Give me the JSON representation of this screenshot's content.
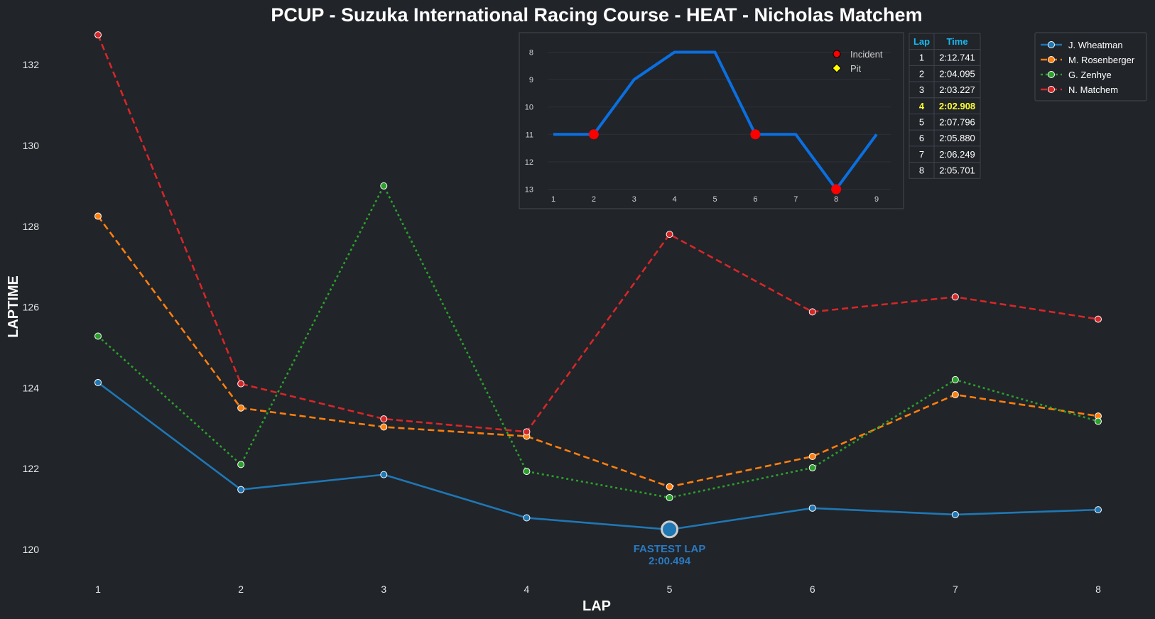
{
  "chart_data": {
    "type": "line",
    "title": "PCUP - Suzuka International Racing Course - HEAT - Nicholas Matchem",
    "xlabel": "LAP",
    "ylabel": "LAPTIME",
    "x": [
      1,
      2,
      3,
      4,
      5,
      6,
      7,
      8
    ],
    "ylim": [
      119.4,
      132.9
    ],
    "yticks": [
      120,
      122,
      124,
      126,
      128,
      130,
      132
    ],
    "grid": false,
    "legend_position": "top-right",
    "series": [
      {
        "name": "J. Wheatman",
        "color": "#1f77b4",
        "dash": "solid",
        "values": [
          124.13,
          121.48,
          121.85,
          120.78,
          120.49,
          121.02,
          120.86,
          120.98
        ]
      },
      {
        "name": "M. Rosenberger",
        "color": "#ff7f0e",
        "dash": "dashed",
        "values": [
          128.25,
          123.5,
          123.03,
          122.8,
          121.55,
          122.3,
          123.83,
          123.3
        ]
      },
      {
        "name": "G. Zenhye",
        "color": "#2ca02c",
        "dash": "dotted",
        "values": [
          125.28,
          122.1,
          129.0,
          121.93,
          121.28,
          122.02,
          124.2,
          123.17
        ]
      },
      {
        "name": "N. Matchem",
        "color": "#d62728",
        "dash": "dashed",
        "values": [
          132.74,
          124.1,
          123.23,
          122.91,
          127.8,
          125.88,
          126.25,
          125.7
        ]
      }
    ],
    "annotation": {
      "label": "FASTEST LAP",
      "value": "2:00.494",
      "lap": 5,
      "laptime": 120.494
    },
    "inset_position_chart": {
      "type": "line",
      "x": [
        1,
        2,
        3,
        4,
        5,
        6,
        7,
        8,
        9
      ],
      "values": [
        11,
        11,
        9,
        8,
        8,
        11,
        11,
        13,
        11
      ],
      "ylim": [
        13.4,
        7.6
      ],
      "yticks": [
        8,
        9,
        10,
        11,
        12,
        13
      ],
      "y_inverted": true,
      "color": "#0a6fe0",
      "incidents_x": [
        2,
        6,
        8
      ],
      "pits_x": [],
      "legend": [
        {
          "label": "Incident",
          "color": "#ff0000"
        },
        {
          "label": "Pit",
          "color": "#ffff00"
        }
      ]
    },
    "lap_table": {
      "headers": [
        "Lap",
        "Time"
      ],
      "rows": [
        [
          "1",
          "2:12.741"
        ],
        [
          "2",
          "2:04.095"
        ],
        [
          "3",
          "2:03.227"
        ],
        [
          "4",
          "2:02.908"
        ],
        [
          "5",
          "2:07.796"
        ],
        [
          "6",
          "2:05.880"
        ],
        [
          "7",
          "2:06.249"
        ],
        [
          "8",
          "2:05.701"
        ]
      ],
      "best_row": 3,
      "best_color": "#ffff33",
      "header_color": "#19b8f0"
    }
  }
}
